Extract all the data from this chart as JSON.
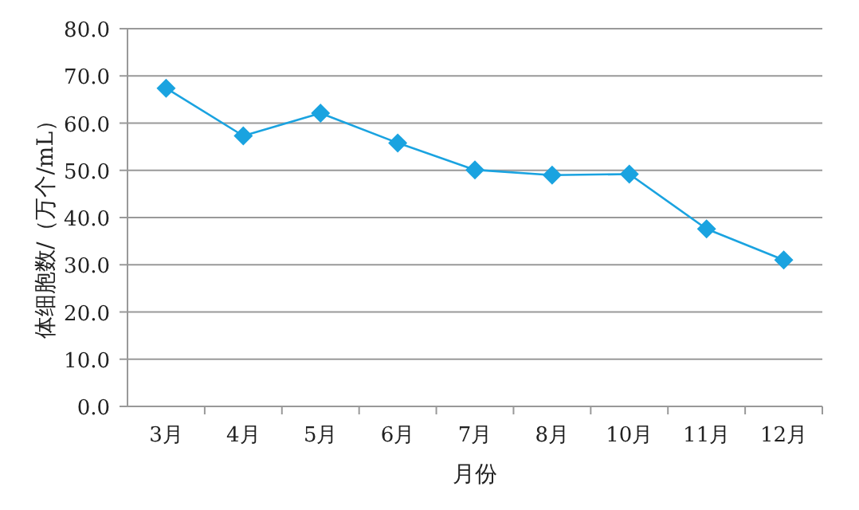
{
  "chart_data": {
    "type": "line",
    "xlabel": "月份",
    "ylabel": "体细胞数/（万个/mL）",
    "categories": [
      "3月",
      "4月",
      "5月",
      "6月",
      "7月",
      "8月",
      "10月",
      "11月",
      "12月"
    ],
    "series": [
      {
        "color": "#1aa3e0",
        "values": [
          67.4,
          57.3,
          62.1,
          55.8,
          50.1,
          49.0,
          49.2,
          37.6,
          31.0
        ]
      }
    ],
    "ylim": [
      0,
      80
    ],
    "yticks": [
      {
        "value": 0,
        "label": "0.0"
      },
      {
        "value": 10,
        "label": "10.0"
      },
      {
        "value": 20,
        "label": "20.0"
      },
      {
        "value": 30,
        "label": "30.0"
      },
      {
        "value": 40,
        "label": "40.0"
      },
      {
        "value": 50,
        "label": "50.0"
      },
      {
        "value": 60,
        "label": "60.0"
      },
      {
        "value": 70,
        "label": "70.0"
      },
      {
        "value": 80,
        "label": "80.0"
      }
    ],
    "grid": "y",
    "marker": "diamond",
    "line_style": "solid"
  }
}
